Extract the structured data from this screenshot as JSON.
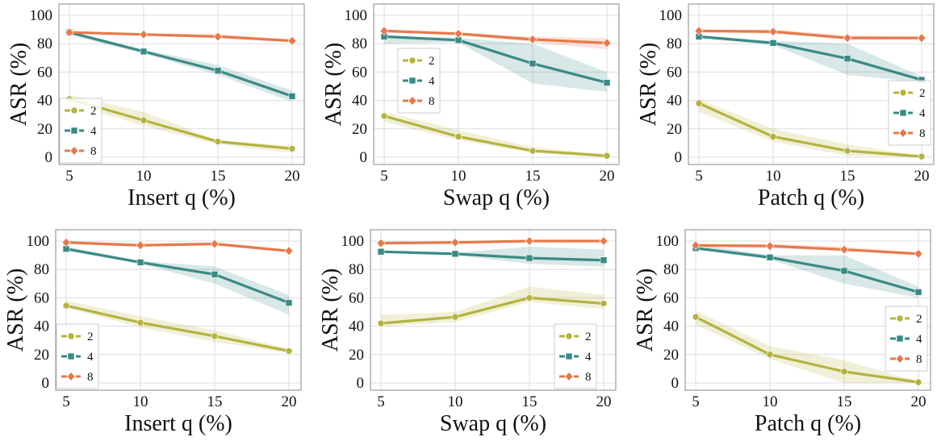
{
  "colors": {
    "2": "#b5b33f",
    "4": "#3a8a86",
    "8": "#e6794a"
  },
  "chart_data": [
    {
      "type": "line",
      "xlabel": "Insert q (%)",
      "ylabel": "ASR (%)",
      "x": [
        5,
        10,
        15,
        20
      ],
      "xticks": [
        "5",
        "10",
        "15",
        "20"
      ],
      "yticks": [
        "0",
        "20",
        "40",
        "60",
        "80",
        "100"
      ],
      "ylim": [
        -4,
        104
      ],
      "grid": true,
      "legend": "lower left",
      "series": [
        {
          "name": "2",
          "marker": "circle",
          "values": [
            41,
            26,
            11,
            6
          ],
          "lower": [
            38,
            22,
            9,
            3
          ],
          "upper": [
            44,
            32,
            12,
            8
          ]
        },
        {
          "name": "4",
          "marker": "square",
          "values": [
            88,
            74.5,
            61,
            43
          ],
          "lower": [
            86,
            73,
            58,
            39
          ],
          "upper": [
            89,
            76,
            65,
            47
          ]
        },
        {
          "name": "8",
          "marker": "diamond",
          "values": [
            88,
            86.5,
            85,
            82
          ],
          "lower": [
            87,
            86,
            84,
            81
          ],
          "upper": [
            89,
            87,
            87,
            83
          ]
        }
      ]
    },
    {
      "type": "line",
      "xlabel": "Swap q (%)",
      "ylabel": "ASR (%)",
      "x": [
        5,
        10,
        15,
        20
      ],
      "xticks": [
        "5",
        "10",
        "15",
        "20"
      ],
      "yticks": [
        "0",
        "20",
        "40",
        "60",
        "80",
        "100"
      ],
      "ylim": [
        -4,
        104
      ],
      "grid": true,
      "legend": "center left",
      "series": [
        {
          "name": "2",
          "marker": "circle",
          "values": [
            29,
            14.5,
            4.5,
            1
          ],
          "lower": [
            25,
            12,
            3,
            0
          ],
          "upper": [
            32,
            19,
            7,
            2
          ]
        },
        {
          "name": "4",
          "marker": "square",
          "values": [
            85,
            82.5,
            66,
            52.5
          ],
          "lower": [
            80,
            81,
            52,
            46
          ],
          "upper": [
            86,
            84,
            80,
            60
          ]
        },
        {
          "name": "8",
          "marker": "diamond",
          "values": [
            89,
            87,
            83,
            80.5
          ],
          "lower": [
            88,
            86,
            81,
            76
          ],
          "upper": [
            90,
            88,
            85,
            84
          ]
        }
      ]
    },
    {
      "type": "line",
      "xlabel": "Patch q (%)",
      "ylabel": "ASR (%)",
      "x": [
        5,
        10,
        15,
        20
      ],
      "xticks": [
        "5",
        "10",
        "15",
        "20"
      ],
      "yticks": [
        "0",
        "20",
        "40",
        "60",
        "80",
        "100"
      ],
      "ylim": [
        -4,
        104
      ],
      "grid": true,
      "legend": "center right",
      "series": [
        {
          "name": "2",
          "marker": "circle",
          "values": [
            38,
            14.5,
            4.5,
            0.5
          ],
          "lower": [
            32,
            11,
            1,
            0
          ],
          "upper": [
            41,
            20,
            9,
            1
          ]
        },
        {
          "name": "4",
          "marker": "square",
          "values": [
            85,
            80.5,
            69.5,
            54.5
          ],
          "lower": [
            84,
            79,
            58,
            53
          ],
          "upper": [
            86,
            82,
            80,
            57
          ]
        },
        {
          "name": "8",
          "marker": "diamond",
          "values": [
            89,
            88.5,
            84,
            84
          ],
          "lower": [
            88,
            87,
            83,
            83
          ],
          "upper": [
            90,
            90,
            86,
            85
          ]
        }
      ]
    },
    {
      "type": "line",
      "xlabel": "Insert q (%)",
      "ylabel": "ASR (%)",
      "x": [
        5,
        10,
        15,
        20
      ],
      "xticks": [
        "5",
        "10",
        "15",
        "20"
      ],
      "yticks": [
        "0",
        "20",
        "40",
        "60",
        "80",
        "100"
      ],
      "ylim": [
        -4,
        104
      ],
      "grid": true,
      "legend": "lower left",
      "series": [
        {
          "name": "2",
          "marker": "circle",
          "values": [
            54.5,
            42.5,
            33,
            22.5
          ],
          "lower": [
            53,
            39,
            29,
            21
          ],
          "upper": [
            58,
            47,
            37,
            24
          ]
        },
        {
          "name": "4",
          "marker": "square",
          "values": [
            94.5,
            85,
            76.5,
            56.5
          ],
          "lower": [
            93,
            84,
            70,
            48
          ],
          "upper": [
            96,
            86,
            82,
            62
          ]
        },
        {
          "name": "8",
          "marker": "diamond",
          "values": [
            99,
            97,
            98,
            93
          ],
          "lower": [
            98,
            96,
            97,
            92
          ],
          "upper": [
            100,
            98,
            99,
            94
          ]
        }
      ]
    },
    {
      "type": "line",
      "xlabel": "Swap q (%)",
      "ylabel": "ASR (%)",
      "x": [
        5,
        10,
        15,
        20
      ],
      "xticks": [
        "5",
        "10",
        "15",
        "20"
      ],
      "yticks": [
        "0",
        "20",
        "40",
        "60",
        "80",
        "100"
      ],
      "ylim": [
        -4,
        104
      ],
      "grid": true,
      "legend": "lower right",
      "series": [
        {
          "name": "2",
          "marker": "circle",
          "values": [
            42,
            46.5,
            60,
            56
          ],
          "lower": [
            40,
            43,
            57,
            52
          ],
          "upper": [
            48,
            50,
            68,
            62
          ]
        },
        {
          "name": "4",
          "marker": "square",
          "values": [
            92.5,
            91,
            88,
            86.5
          ],
          "lower": [
            92,
            90,
            84,
            82
          ],
          "upper": [
            93,
            92,
            96,
            94
          ]
        },
        {
          "name": "8",
          "marker": "diamond",
          "values": [
            98.5,
            99,
            100,
            100
          ],
          "lower": [
            98,
            99,
            100,
            100
          ],
          "upper": [
            99,
            100,
            100,
            100
          ]
        }
      ]
    },
    {
      "type": "line",
      "xlabel": "Patch q (%)",
      "ylabel": "ASR (%)",
      "x": [
        5,
        10,
        15,
        20
      ],
      "xticks": [
        "5",
        "10",
        "15",
        "20"
      ],
      "yticks": [
        "0",
        "20",
        "40",
        "60",
        "80",
        "100"
      ],
      "ylim": [
        -4,
        104
      ],
      "grid": true,
      "legend": "center right",
      "series": [
        {
          "name": "2",
          "marker": "circle",
          "values": [
            46.5,
            20,
            8,
            0.5
          ],
          "lower": [
            41,
            17,
            0,
            0
          ],
          "upper": [
            51,
            26,
            16,
            1
          ]
        },
        {
          "name": "4",
          "marker": "square",
          "values": [
            95,
            88.5,
            79,
            64
          ],
          "lower": [
            94,
            87,
            70,
            60
          ],
          "upper": [
            98,
            90,
            90,
            68
          ]
        },
        {
          "name": "8",
          "marker": "diamond",
          "values": [
            97,
            96.5,
            94,
            91
          ],
          "lower": [
            96,
            95,
            93,
            90
          ],
          "upper": [
            98,
            98,
            96,
            92
          ]
        }
      ]
    }
  ]
}
